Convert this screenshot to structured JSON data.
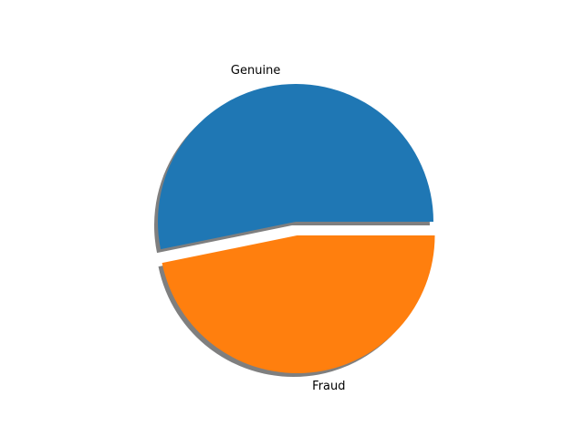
{
  "chart_data": {
    "type": "pie",
    "labels": [
      "Genuine",
      "Fraud"
    ],
    "values": [
      53.2,
      46.8
    ],
    "colors": [
      "#1f77b4",
      "#ff7f0e"
    ],
    "explode": [
      0.0,
      0.1
    ],
    "shadow": true,
    "start_angle_deg": 0,
    "direction": "counterclockwise",
    "title": "",
    "legend": "none"
  }
}
